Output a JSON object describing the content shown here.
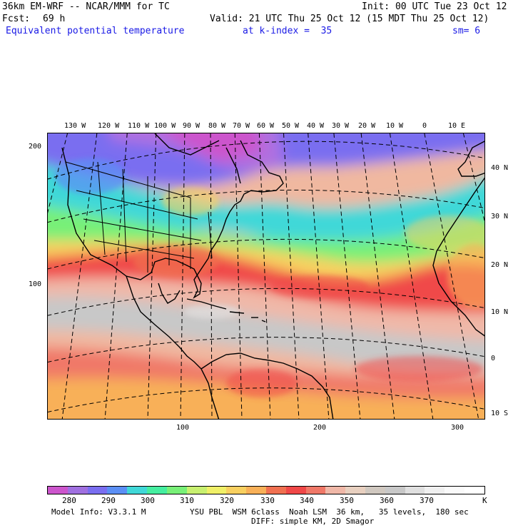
{
  "header": {
    "model": "36km EM-WRF -- NCAR/MMM for TC",
    "init": "Init: 00 UTC Tue 23 Oct 12",
    "fcst_label": "Fcst:",
    "fcst_value": "69 h",
    "valid": "Valid: 21 UTC Thu 25 Oct 12 (15 MDT Thu 25 Oct 12)",
    "field": "Equivalent potential temperature",
    "level": "at k-index =  35",
    "smoothing": "sm= 6"
  },
  "map": {
    "top_longitude_labels": [
      "130 W",
      "120 W",
      "110 W",
      "100 W",
      "90 W",
      "80 W",
      "70 W",
      "60 W",
      "50 W",
      "40 W",
      "30 W",
      "20 W",
      "10 W",
      "0",
      "10 E"
    ],
    "right_latitude_labels": [
      "40 N",
      "30 N",
      "20 N",
      "10 N",
      "0",
      "10 S"
    ],
    "left_grid_labels": [
      "200",
      "100"
    ],
    "bottom_grid_labels": [
      "100",
      "200",
      "300"
    ]
  },
  "colorbar": {
    "labels": [
      "280",
      "290",
      "300",
      "310",
      "320",
      "330",
      "340",
      "350",
      "360",
      "370"
    ],
    "unit": "K",
    "colors": [
      "#cc55cc",
      "#a070e0",
      "#7a6ef0",
      "#5b8ff5",
      "#40d8d8",
      "#45eea0",
      "#78f078",
      "#c8f070",
      "#f0f068",
      "#f8d060",
      "#f8b058",
      "#f07050",
      "#f04848",
      "#f07868",
      "#f0b8a8",
      "#e8d0c0",
      "#d0c8c0",
      "#c8c8c8",
      "#e0e0e0",
      "#f0f0f0",
      "#fafafa",
      "#ffffff"
    ]
  },
  "footer": {
    "model_info": "Model Info: V3.3.1 M",
    "physics": "YSU PBL  WSM 6class  Noah LSM  36 km,   35 levels,  180 sec",
    "diffusion": "DIFF: simple KM, 2D Smagor"
  }
}
